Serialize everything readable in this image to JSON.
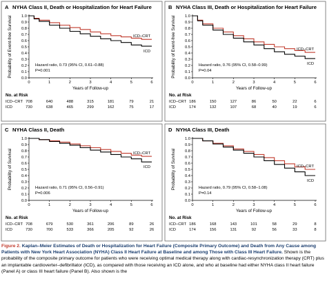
{
  "chart_data": [
    {
      "type": "line",
      "panel": "A",
      "title": "NYHA Class II, Death or Hospitalization for Heart Failure",
      "xlabel": "Years of Follow-up",
      "ylabel": "Probability of Event-free Survival",
      "xlim": [
        0,
        6
      ],
      "ylim": [
        0,
        1.0
      ],
      "x_ticks": [
        "0",
        "1",
        "2",
        "3",
        "4",
        "5",
        "6"
      ],
      "y_ticks": [
        "0.0",
        "0.1",
        "0.2",
        "0.3",
        "0.4",
        "0.5",
        "0.6",
        "0.7",
        "0.8",
        "0.9",
        "1.0"
      ],
      "grid": false,
      "annotation": [
        "Hazard ratio, 0.73 (95% CI, 0.61–0.88)",
        "P=0.001"
      ],
      "series": [
        {
          "name": "ICD–CRT",
          "color": "#c0392b",
          "x": [
            0,
            0.25,
            0.5,
            1,
            1.5,
            2,
            2.5,
            3,
            3.5,
            4,
            4.5,
            5,
            5.5,
            6
          ],
          "y": [
            1.0,
            0.96,
            0.93,
            0.89,
            0.85,
            0.81,
            0.78,
            0.74,
            0.71,
            0.68,
            0.66,
            0.64,
            0.62,
            0.62
          ]
        },
        {
          "name": "ICD",
          "color": "#000000",
          "x": [
            0,
            0.25,
            0.5,
            1,
            1.5,
            2,
            2.5,
            3,
            3.5,
            4,
            4.5,
            5,
            5.5,
            6
          ],
          "y": [
            1.0,
            0.95,
            0.91,
            0.85,
            0.8,
            0.75,
            0.71,
            0.67,
            0.63,
            0.6,
            0.57,
            0.53,
            0.51,
            0.51
          ]
        }
      ],
      "at_risk": {
        "header": "No. at Risk",
        "values": [
          "0",
          "1",
          "2",
          "3",
          "4",
          "5",
          "6"
        ],
        "rows": [
          {
            "name": "ICD–CRT",
            "values": [
              "708",
              "640",
              "488",
              "315",
              "181",
              "79",
              "21"
            ]
          },
          {
            "name": "ICD",
            "values": [
              "730",
              "638",
              "465",
              "299",
              "162",
              "75",
              "17"
            ]
          }
        ]
      }
    },
    {
      "type": "line",
      "panel": "B",
      "title": "NYHA Class III, Death or Hospitalization for Heart Failure",
      "xlabel": "Years of Follow-up",
      "ylabel": "Probability of Event-free Survival",
      "xlim": [
        0,
        6
      ],
      "ylim": [
        0,
        1.0
      ],
      "x_ticks": [
        "0",
        "1",
        "2",
        "3",
        "4",
        "5",
        "6"
      ],
      "y_ticks": [
        "0.0",
        "0.1",
        "0.2",
        "0.3",
        "0.4",
        "0.5",
        "0.6",
        "0.7",
        "0.8",
        "0.9",
        "1.0"
      ],
      "grid": false,
      "annotation": [
        "Hazard ratio, 0.76 (95% CI, 0.58–0.99)",
        "P=0.04"
      ],
      "series": [
        {
          "name": "ICD–CRT",
          "color": "#c0392b",
          "x": [
            0,
            0.25,
            0.5,
            1,
            1.5,
            2,
            2.5,
            3,
            3.5,
            4,
            4.5,
            5,
            5.5,
            6
          ],
          "y": [
            1.0,
            0.93,
            0.87,
            0.8,
            0.74,
            0.68,
            0.63,
            0.58,
            0.54,
            0.5,
            0.47,
            0.44,
            0.41,
            0.41
          ]
        },
        {
          "name": "ICD",
          "color": "#000000",
          "x": [
            0,
            0.25,
            0.5,
            1,
            1.5,
            2,
            2.5,
            3,
            3.5,
            4,
            4.5,
            5,
            5.5,
            6
          ],
          "y": [
            1.0,
            0.92,
            0.85,
            0.77,
            0.7,
            0.64,
            0.58,
            0.53,
            0.47,
            0.42,
            0.38,
            0.35,
            0.31,
            0.31
          ]
        }
      ],
      "at_risk": {
        "header": "No. at Risk",
        "values": [
          "0",
          "1",
          "2",
          "3",
          "4",
          "5",
          "6"
        ],
        "rows": [
          {
            "name": "ICD–CRT",
            "values": [
              "186",
              "150",
              "127",
              "86",
              "50",
              "22",
              "6"
            ]
          },
          {
            "name": "ICD",
            "values": [
              "174",
              "132",
              "107",
              "68",
              "40",
              "19",
              "6"
            ]
          }
        ]
      }
    },
    {
      "type": "line",
      "panel": "C",
      "title": "NYHA Class II, Death",
      "xlabel": "Years of Follow-up",
      "ylabel": "Probability of Survival",
      "xlim": [
        0,
        6
      ],
      "ylim": [
        0,
        1.0
      ],
      "x_ticks": [
        "0",
        "1",
        "2",
        "3",
        "4",
        "5",
        "6"
      ],
      "y_ticks": [
        "0.0",
        "0.1",
        "0.2",
        "0.3",
        "0.4",
        "0.5",
        "0.6",
        "0.7",
        "0.8",
        "0.9",
        "1.0"
      ],
      "grid": false,
      "annotation": [
        "Hazard ratio, 0.71 (95% CI, 0.56–0.91)",
        "P=0.006"
      ],
      "series": [
        {
          "name": "ICD–CRT",
          "color": "#c0392b",
          "x": [
            0,
            0.5,
            1,
            1.5,
            2,
            2.5,
            3,
            3.5,
            4,
            4.5,
            5,
            5.5,
            6
          ],
          "y": [
            1.0,
            0.98,
            0.96,
            0.94,
            0.91,
            0.88,
            0.85,
            0.82,
            0.79,
            0.76,
            0.73,
            0.71,
            0.71
          ]
        },
        {
          "name": "ICD",
          "color": "#000000",
          "x": [
            0,
            0.5,
            1,
            1.5,
            2,
            2.5,
            3,
            3.5,
            4,
            4.5,
            5,
            5.5,
            6
          ],
          "y": [
            1.0,
            0.98,
            0.95,
            0.92,
            0.89,
            0.85,
            0.81,
            0.78,
            0.74,
            0.7,
            0.67,
            0.62,
            0.62
          ]
        }
      ],
      "at_risk": {
        "header": "No. at Risk",
        "values": [
          "0",
          "1",
          "2",
          "3",
          "4",
          "5",
          "6"
        ],
        "rows": [
          {
            "name": "ICD–CRT",
            "values": [
              "708",
              "679",
              "530",
              "361",
              "206",
              "89",
              "26"
            ]
          },
          {
            "name": "ICD",
            "values": [
              "730",
              "700",
              "533",
              "366",
              "205",
              "92",
              "26"
            ]
          }
        ]
      }
    },
    {
      "type": "line",
      "panel": "D",
      "title": "NYHA Class III, Death",
      "xlabel": "Years of Follow-up",
      "ylabel": "Probability of Survival",
      "xlim": [
        0,
        6
      ],
      "ylim": [
        0,
        1.0
      ],
      "x_ticks": [
        "0",
        "1",
        "2",
        "3",
        "4",
        "5",
        "6"
      ],
      "y_ticks": [
        "0.0",
        "0.1",
        "0.2",
        "0.3",
        "0.4",
        "0.5",
        "0.6",
        "0.7",
        "0.8",
        "0.9",
        "1.0"
      ],
      "grid": false,
      "annotation": [
        "Hazard ratio, 0.79 (95% CI, 0.58–1.08)",
        "P=0.14"
      ],
      "series": [
        {
          "name": "ICD–CRT",
          "color": "#c0392b",
          "x": [
            0,
            0.5,
            1,
            1.5,
            2,
            2.5,
            3,
            3.5,
            4,
            4.5,
            5,
            5.5,
            6
          ],
          "y": [
            1.0,
            0.96,
            0.92,
            0.88,
            0.83,
            0.79,
            0.74,
            0.69,
            0.64,
            0.59,
            0.54,
            0.5,
            0.5
          ]
        },
        {
          "name": "ICD",
          "color": "#000000",
          "x": [
            0,
            0.5,
            1,
            1.5,
            2,
            2.5,
            3,
            3.5,
            4,
            4.5,
            5,
            5.5,
            6
          ],
          "y": [
            1.0,
            0.96,
            0.91,
            0.86,
            0.81,
            0.76,
            0.7,
            0.64,
            0.58,
            0.52,
            0.46,
            0.4,
            0.4
          ]
        }
      ],
      "at_risk": {
        "header": "No. at Risk",
        "values": [
          "0",
          "1",
          "2",
          "3",
          "4",
          "5",
          "6"
        ],
        "rows": [
          {
            "name": "ICD–CRT",
            "values": [
              "186",
              "168",
              "143",
              "101",
              "58",
              "29",
              "8"
            ]
          },
          {
            "name": "ICD",
            "values": [
              "174",
              "156",
              "131",
              "92",
              "56",
              "33",
              "8"
            ]
          }
        ]
      }
    }
  ],
  "caption": {
    "label": "Figure 2.",
    "title": "Kaplan–Meier Estimates of Death or Hospitalization for Heart Failure (Composite Primary Outcome) and Death from Any Cause among Patients with New York Heart Association (NYHA) Class II Heart Failure at Baseline and among Those with Class III Heart Failure.",
    "text": "Shown is the probability of the composite primary outcome for patients who were receiving optimal medical therapy along with cardiac-resynchronization therapy (CRT) plus an implantable cardioverter–defibrillator (ICD), as compared with those receiving an ICD alone, and who at baseline had either NYHA class II heart failure (Panel A) or class III heart failure (Panel B). Also shown is the"
  },
  "colors": {
    "panel_bg": "#ffffff",
    "panel_border": "#666666",
    "icd_crt": "#c0392b",
    "icd": "#000000",
    "caption_title": "#1a3d6e"
  }
}
